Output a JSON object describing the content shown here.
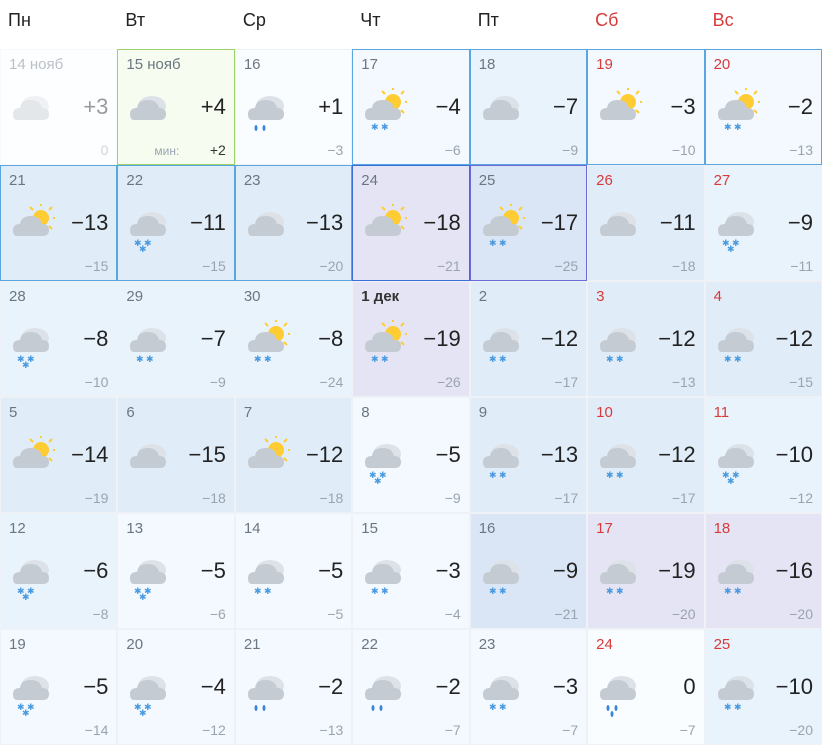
{
  "headers": [
    "Пн",
    "Вт",
    "Ср",
    "Чт",
    "Пт",
    "Сб",
    "Вс"
  ],
  "weekend_idx": [
    5,
    6
  ],
  "colors": {
    "weekend_text": "#d83a3a",
    "normal_text": "#222",
    "muted": "#9aa4af",
    "cloud_main": "#c5cbd2",
    "cloud_back": "#dde2e8",
    "sun": "#ffcc33",
    "snow": "#4a9ae0",
    "rain": "#3a85d8",
    "today_border": "#9ad46a",
    "today_bg": "#f6fdf0"
  },
  "days": [
    {
      "date": "14 нояб",
      "dateMonth": true,
      "high": "+3",
      "low": "0",
      "icon": "cloudy",
      "past": true,
      "bg": "w"
    },
    {
      "date": "15 нояб",
      "dateMonth": true,
      "high": "+4",
      "minLabel": "мин:",
      "minVal": "+2",
      "icon": "cloudy",
      "today": true
    },
    {
      "date": "16",
      "high": "+1",
      "low": "−3",
      "icon": "cloudy-rain",
      "bg": "w"
    },
    {
      "date": "17",
      "high": "−4",
      "low": "−6",
      "icon": "partly-snow",
      "bg": "b1",
      "box": "blue"
    },
    {
      "date": "18",
      "high": "−7",
      "low": "−9",
      "icon": "cloudy",
      "bg": "b2",
      "box": "blue"
    },
    {
      "date": "19",
      "high": "−3",
      "low": "−10",
      "icon": "partly",
      "weekend": true,
      "bg": "b1",
      "box": "blue"
    },
    {
      "date": "20",
      "high": "−2",
      "low": "−13",
      "icon": "partly-snow",
      "weekend": true,
      "bg": "b1",
      "box": "blue"
    },
    {
      "date": "21",
      "high": "−13",
      "low": "−15",
      "icon": "partly",
      "bg": "b3",
      "box": "blue"
    },
    {
      "date": "22",
      "high": "−11",
      "low": "−15",
      "icon": "cloudy-snow3",
      "bg": "b3",
      "box": "blue"
    },
    {
      "date": "23",
      "high": "−13",
      "low": "−20",
      "icon": "cloudy",
      "bg": "b3",
      "box": "blue"
    },
    {
      "date": "24",
      "high": "−18",
      "low": "−21",
      "icon": "partly",
      "bg": "v1",
      "box": "blue2"
    },
    {
      "date": "25",
      "high": "−17",
      "low": "−25",
      "icon": "partly-snow",
      "bg": "b4",
      "box": "blue3"
    },
    {
      "date": "26",
      "high": "−11",
      "low": "−18",
      "icon": "cloudy",
      "weekend": true,
      "bg": "b3"
    },
    {
      "date": "27",
      "high": "−9",
      "low": "−11",
      "icon": "cloudy-snow3",
      "weekend": true,
      "bg": "b2"
    },
    {
      "date": "28",
      "high": "−8",
      "low": "−10",
      "icon": "cloudy-snow3",
      "bg": "b2"
    },
    {
      "date": "29",
      "high": "−7",
      "low": "−9",
      "icon": "cloudy-snow2",
      "bg": "b2"
    },
    {
      "date": "30",
      "high": "−8",
      "low": "−24",
      "icon": "partly-snow",
      "bg": "b2"
    },
    {
      "date": "1 дек",
      "dateMonth": true,
      "bold": true,
      "high": "−19",
      "low": "−26",
      "icon": "partly-snow",
      "bg": "v1"
    },
    {
      "date": "2",
      "high": "−12",
      "low": "−17",
      "icon": "cloudy-snow2",
      "bg": "b3"
    },
    {
      "date": "3",
      "high": "−12",
      "low": "−13",
      "icon": "cloudy-snow2",
      "weekend": true,
      "bg": "b3"
    },
    {
      "date": "4",
      "high": "−12",
      "low": "−15",
      "icon": "cloudy-snow2",
      "weekend": true,
      "bg": "b3"
    },
    {
      "date": "5",
      "high": "−14",
      "low": "−19",
      "icon": "partly",
      "bg": "b3"
    },
    {
      "date": "6",
      "high": "−15",
      "low": "−18",
      "icon": "cloudy",
      "bg": "b3"
    },
    {
      "date": "7",
      "high": "−12",
      "low": "−18",
      "icon": "partly",
      "bg": "b3"
    },
    {
      "date": "8",
      "high": "−5",
      "low": "−9",
      "icon": "cloudy-snow3",
      "bg": "b1"
    },
    {
      "date": "9",
      "high": "−13",
      "low": "−17",
      "icon": "cloudy-snow2",
      "bg": "b3"
    },
    {
      "date": "10",
      "high": "−12",
      "low": "−17",
      "icon": "cloudy-snow2",
      "weekend": true,
      "bg": "b3"
    },
    {
      "date": "11",
      "high": "−10",
      "low": "−12",
      "icon": "cloudy-snow3",
      "weekend": true,
      "bg": "b2"
    },
    {
      "date": "12",
      "high": "−6",
      "low": "−8",
      "icon": "cloudy-snow3",
      "bg": "b2"
    },
    {
      "date": "13",
      "high": "−5",
      "low": "−6",
      "icon": "cloudy-snow3",
      "bg": "b1"
    },
    {
      "date": "14",
      "high": "−5",
      "low": "−5",
      "icon": "cloudy-snow2",
      "bg": "b1"
    },
    {
      "date": "15",
      "high": "−3",
      "low": "−4",
      "icon": "cloudy-snow2",
      "bg": "b1"
    },
    {
      "date": "16",
      "high": "−9",
      "low": "−21",
      "icon": "cloudy-snow2",
      "bg": "b4"
    },
    {
      "date": "17",
      "high": "−19",
      "low": "−20",
      "icon": "cloudy-snow2",
      "weekend": true,
      "bg": "v1"
    },
    {
      "date": "18",
      "high": "−16",
      "low": "−20",
      "icon": "cloudy-snow2",
      "weekend": true,
      "bg": "v1"
    },
    {
      "date": "19",
      "high": "−5",
      "low": "−14",
      "icon": "cloudy-snow3",
      "bg": "b1"
    },
    {
      "date": "20",
      "high": "−4",
      "low": "−12",
      "icon": "cloudy-snow3",
      "bg": "b1"
    },
    {
      "date": "21",
      "high": "−2",
      "low": "−13",
      "icon": "cloudy-rain",
      "bg": "b1"
    },
    {
      "date": "22",
      "high": "−2",
      "low": "−7",
      "icon": "cloudy-rain",
      "bg": "b1"
    },
    {
      "date": "23",
      "high": "−3",
      "low": "−7",
      "icon": "cloudy-snow2",
      "bg": "b1"
    },
    {
      "date": "24",
      "high": "0",
      "low": "−7",
      "icon": "cloudy-rain2",
      "weekend": true,
      "bg": "w"
    },
    {
      "date": "25",
      "high": "−10",
      "low": "−20",
      "icon": "cloudy-snow2",
      "weekend": true,
      "bg": "b2"
    }
  ]
}
